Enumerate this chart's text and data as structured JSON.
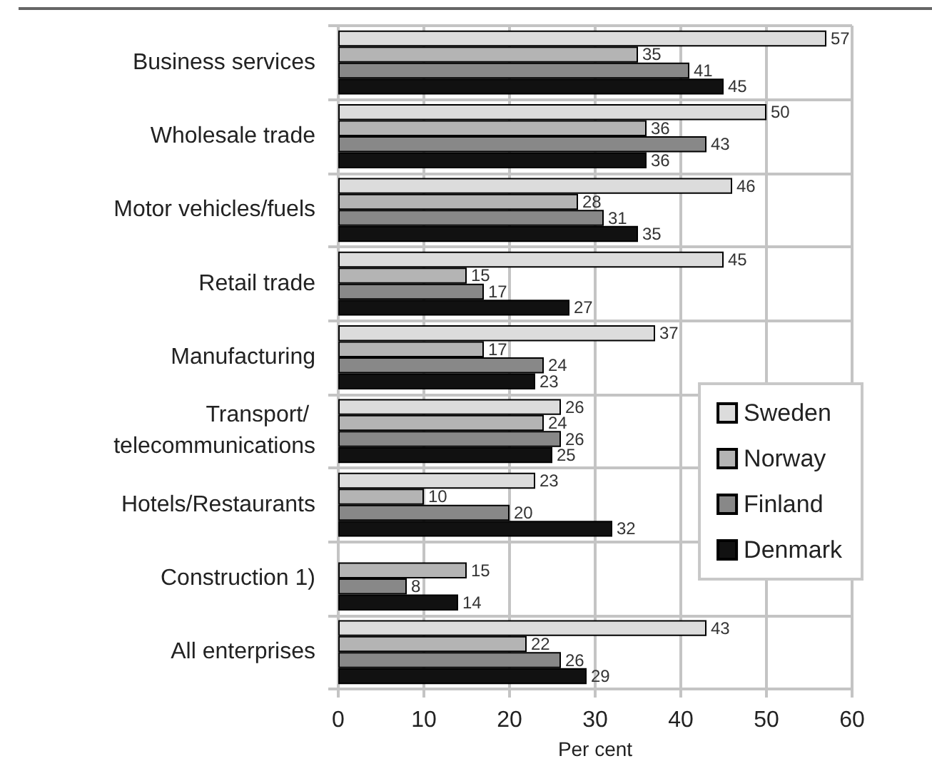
{
  "chart_data": {
    "type": "bar",
    "orientation": "horizontal",
    "categories": [
      "Business services",
      "Wholesale trade",
      "Motor vehicles/fuels",
      "Retail trade",
      "Manufacturing",
      "Transport/ telecommunications",
      "Hotels/Restaurants",
      "Construction 1)",
      "All enterprises"
    ],
    "series": [
      {
        "name": "Sweden",
        "color": "#dcdcdc",
        "values": [
          57,
          50,
          46,
          45,
          37,
          26,
          23,
          null,
          43
        ]
      },
      {
        "name": "Norway",
        "color": "#b4b4b4",
        "values": [
          35,
          36,
          28,
          15,
          17,
          24,
          10,
          15,
          22
        ]
      },
      {
        "name": "Finland",
        "color": "#888888",
        "values": [
          41,
          43,
          31,
          17,
          24,
          26,
          20,
          8,
          26
        ]
      },
      {
        "name": "Denmark",
        "color": "#111111",
        "values": [
          45,
          36,
          35,
          27,
          23,
          25,
          32,
          14,
          29
        ]
      }
    ],
    "xlabel": "Per cent",
    "xlim": [
      0,
      60
    ],
    "xticks": [
      0,
      10,
      20,
      30,
      40,
      50,
      60
    ],
    "grid": true,
    "legend": "right",
    "data_labels": true
  }
}
